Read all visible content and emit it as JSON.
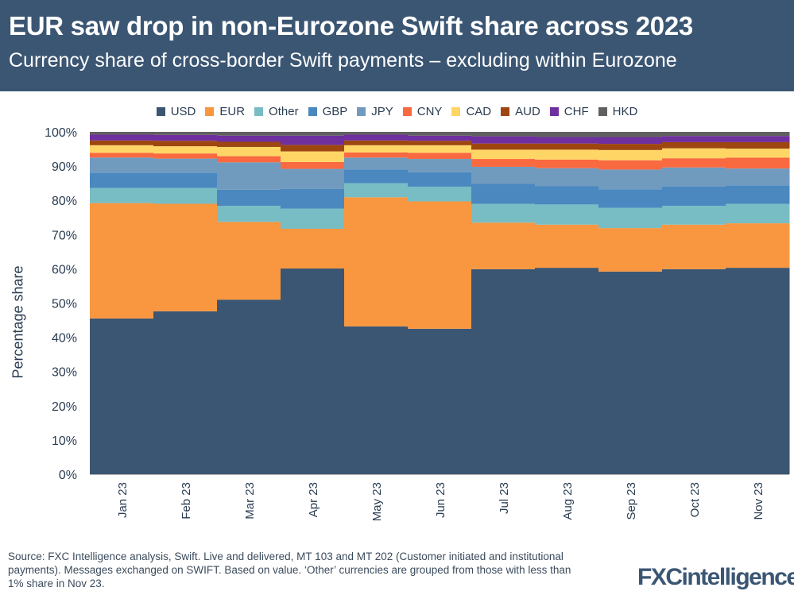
{
  "header": {
    "title": "EUR saw drop in non-Eurozone Swift share across 2023",
    "subtitle": "Currency share of cross-border Swift payments – excluding within Eurozone"
  },
  "footer": {
    "source": "Source: FXC Intelligence analysis, Swift. Live and delivered, MT 103 and MT 202 (Customer initiated and institutional payments). Messages exchanged on SWIFT. Based on value. ‘Other’ currencies are grouped from those with less than 1% share in Nov 23.",
    "logo": "FXCintelligence"
  },
  "chart_data": {
    "type": "bar",
    "stacked": true,
    "title": "",
    "xlabel": "",
    "ylabel": "Percentage share",
    "ylim": [
      0,
      100
    ],
    "yticks": [
      "0%",
      "10%",
      "20%",
      "30%",
      "40%",
      "50%",
      "60%",
      "70%",
      "80%",
      "90%",
      "100%"
    ],
    "legend_position": "top",
    "grid": false,
    "categories": [
      "Jan 23",
      "Feb 23",
      "Mar 23",
      "Apr 23",
      "May 23",
      "Jun 23",
      "Jul 23",
      "Aug 23",
      "Sep 23",
      "Oct 23",
      "Nov 23"
    ],
    "series": [
      {
        "name": "USD",
        "color": "#3b5673",
        "values": [
          45.5,
          47.6,
          51.0,
          60.1,
          43.2,
          42.5,
          59.9,
          60.3,
          59.2,
          59.9,
          60.3
        ]
      },
      {
        "name": "EUR",
        "color": "#f8973f",
        "values": [
          33.7,
          31.4,
          22.7,
          11.6,
          37.7,
          37.2,
          13.6,
          12.6,
          12.7,
          13.0,
          13.0
        ]
      },
      {
        "name": "Other",
        "color": "#78bcc4",
        "values": [
          4.4,
          4.6,
          4.7,
          5.9,
          4.1,
          4.3,
          5.5,
          5.9,
          5.9,
          5.5,
          5.7
        ]
      },
      {
        "name": "GBP",
        "color": "#4a88bf",
        "values": [
          4.5,
          4.5,
          4.7,
          5.7,
          4.0,
          4.2,
          5.8,
          5.4,
          5.4,
          5.6,
          5.4
        ]
      },
      {
        "name": "JPY",
        "color": "#709bbf",
        "values": [
          4.4,
          4.1,
          8.0,
          5.9,
          3.5,
          3.9,
          5.0,
          5.2,
          5.8,
          5.6,
          4.9
        ]
      },
      {
        "name": "CNY",
        "color": "#f96a41",
        "values": [
          1.4,
          1.5,
          1.8,
          2.0,
          1.5,
          1.8,
          2.3,
          2.5,
          2.7,
          2.7,
          3.2
        ]
      },
      {
        "name": "CAD",
        "color": "#ffd665",
        "values": [
          2.2,
          2.1,
          2.7,
          3.1,
          2.1,
          2.2,
          2.7,
          2.9,
          3.0,
          2.9,
          2.6
        ]
      },
      {
        "name": "AUD",
        "color": "#9e4610",
        "values": [
          1.4,
          1.6,
          1.5,
          1.9,
          1.4,
          1.3,
          1.8,
          1.8,
          1.8,
          1.8,
          1.9
        ]
      },
      {
        "name": "CHF",
        "color": "#6f2f9f",
        "values": [
          1.7,
          1.7,
          1.8,
          2.7,
          1.7,
          1.5,
          2.1,
          1.9,
          2.0,
          1.8,
          1.8
        ]
      },
      {
        "name": "HKD",
        "color": "#606060",
        "values": [
          0.8,
          0.9,
          1.1,
          1.1,
          0.8,
          1.1,
          1.3,
          1.5,
          1.5,
          1.2,
          1.2
        ]
      }
    ]
  }
}
